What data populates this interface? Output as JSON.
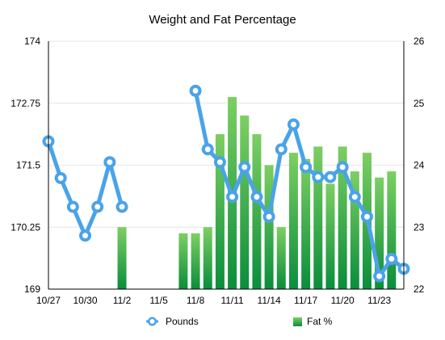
{
  "chart_data": {
    "type": "bar",
    "title": "Weight and Fat Percentage",
    "xlabel": "",
    "ylabel": "",
    "x_tick_labels": [
      "10/27",
      "10/30",
      "11/2",
      "11/5",
      "11/8",
      "11/11",
      "11/14",
      "11/17",
      "11/20",
      "11/23"
    ],
    "y_left_ticks": [
      "169",
      "170.25",
      "171.5",
      "172.75",
      "174"
    ],
    "y_right_ticks": [
      "22",
      "23",
      "24",
      "25",
      "26"
    ],
    "ylim_left": [
      169,
      174
    ],
    "ylim_right": [
      22,
      26
    ],
    "grid": true,
    "legend_position": "bottom",
    "series": [
      {
        "name": "Pounds",
        "type": "line",
        "axis": "left",
        "color": "#4aa3e8",
        "x": [
          "10/27",
          "10/28",
          "10/29",
          "10/30",
          "10/31",
          "11/1",
          "11/2",
          "11/7",
          "11/8",
          "11/9",
          "11/10",
          "11/11",
          "11/12",
          "11/13",
          "11/14",
          "11/15",
          "11/16",
          "11/17",
          "11/18",
          "11/19",
          "11/20",
          "11/21",
          "11/22",
          "11/23",
          "11/24",
          "11/25"
        ],
        "values": [
          171.98,
          171.24,
          170.66,
          170.08,
          170.66,
          171.56,
          170.66,
          null,
          173.0,
          171.82,
          171.56,
          170.86,
          171.46,
          170.86,
          170.46,
          171.82,
          172.32,
          171.46,
          171.26,
          171.26,
          171.46,
          170.86,
          170.46,
          169.26,
          169.61,
          169.41
        ]
      },
      {
        "name": "Fat %",
        "type": "bar",
        "axis": "right",
        "color": "#1a9a45",
        "x": [
          "10/27",
          "10/28",
          "10/29",
          "10/30",
          "10/31",
          "11/1",
          "11/2",
          "11/7",
          "11/8",
          "11/9",
          "11/10",
          "11/11",
          "11/12",
          "11/13",
          "11/14",
          "11/15",
          "11/16",
          "11/17",
          "11/18",
          "11/19",
          "11/20",
          "11/21",
          "11/22",
          "11/23",
          "11/24",
          "11/25"
        ],
        "values": [
          null,
          null,
          null,
          null,
          null,
          null,
          23.0,
          22.9,
          22.9,
          23.0,
          24.5,
          25.1,
          24.8,
          24.5,
          24.0,
          23.0,
          24.2,
          24.1,
          24.3,
          23.7,
          24.3,
          23.9,
          24.2,
          23.8,
          23.9,
          null
        ]
      }
    ]
  },
  "legend": {
    "line_label": "Pounds",
    "bar_label": "Fat %"
  },
  "colors": {
    "line": "#4aa3e8",
    "bar_top": "#7ccf62",
    "bar_bottom": "#0a8d3c",
    "grid": "#e6e6e6",
    "axis": "#000000"
  }
}
